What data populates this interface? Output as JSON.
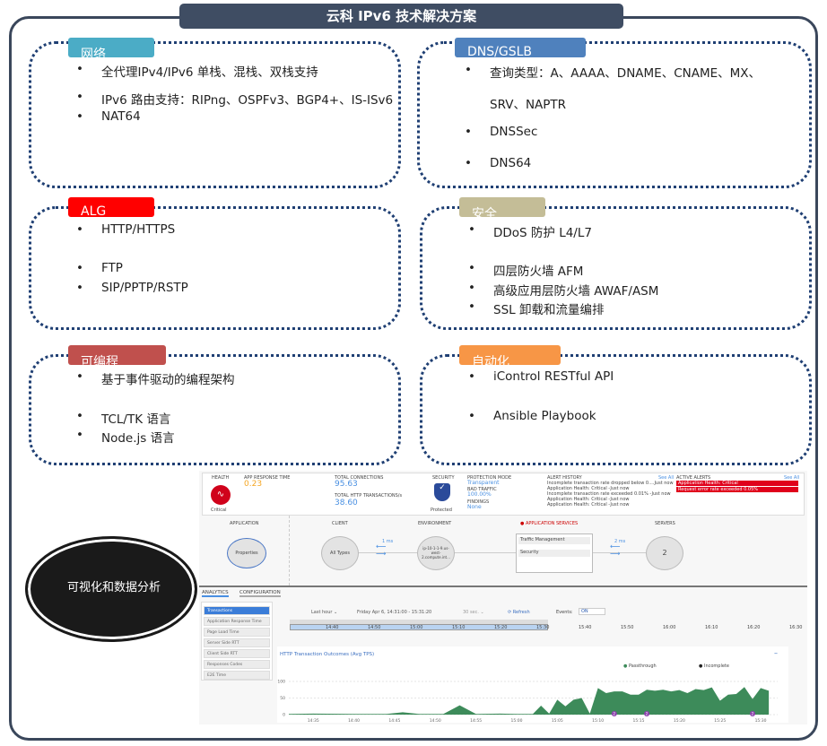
{
  "title": "云科 IPv6 技术解决方案",
  "sections": [
    {
      "label": "网络",
      "color": "#4bacc6",
      "items": [
        "全代理IPv4/IPv6 单栈、混栈、双栈支持",
        "IPv6 路由支持：RIPng、OSPFv3、BGP4+、IS-ISv6",
        "NAT64"
      ]
    },
    {
      "label": "DNS/GSLB",
      "color": "#4f81bd",
      "items": [
        "查询类型：A、AAAA、DNAME、CNAME、MX、",
        "SRV、NAPTR",
        "DNSSec",
        "DNS64"
      ]
    },
    {
      "label": "ALG",
      "color": "#ff0000",
      "items": [
        "HTTP/HTTPS",
        "FTP",
        "SIP/PPTP/RSTP"
      ]
    },
    {
      "label": "安全",
      "color": "#c4bd97",
      "items": [
        "DDoS 防护 L4/L7",
        "四层防火墙 AFM",
        "高级应用层防火墙 AWAF/ASM",
        "SSL 卸载和流量编排"
      ]
    },
    {
      "label": "可编程",
      "color": "#c0504d",
      "items": [
        "基于事件驱动的编程架构",
        "TCL/TK 语言",
        "Node.js 语言"
      ]
    },
    {
      "label": "自动化",
      "color": "#f79646",
      "items": [
        "iControl RESTful API",
        "Ansible Playbook"
      ]
    }
  ],
  "bullet": "•",
  "oval_text": "可视化和数据分析",
  "dash": {
    "health": "HEALTH",
    "health_status": "Critical",
    "art": "APP RESPONSE TIME",
    "art_value": "0.23",
    "tc": "TOTAL CONNECTIONS",
    "tc_value": "95.63",
    "tht": "TOTAL HTTP TRANSACTIONS/s",
    "tht_value": "38.60",
    "security": "SECURITY",
    "security_status": "Protected",
    "pm": "PROTECTION MODE",
    "pm_value": "Transparent",
    "bt": "BAD TRAFFIC",
    "bt_value": "100.00%",
    "findings": "FINDINGS",
    "findings_value": "None",
    "alert_history": "ALERT HISTORY",
    "see_all": "See All",
    "alerts": [
      "Incomplete transaction rate dropped below 0....Just now",
      "Application Health: Critical -Just now",
      "Incomplete transaction rate exceeded 0.01% -Just now",
      "Application Health: Critical -Just now",
      "Application Health: Critical -Just now"
    ],
    "active_alerts": "ACTIVE ALERTS",
    "active": [
      "Application Health: Critical",
      "Request error rate exceeded 0.05%"
    ],
    "map": {
      "application": "APPLICATION",
      "client": "CLIENT",
      "environment": "ENVIRONMENT",
      "app_services": "APPLICATION SERVICES",
      "servers": "SERVERS",
      "properties": "Properties",
      "all_types": "All Types",
      "env_node": "ip-10-1-1-9.us-west-2.compute.int...",
      "lat1": "1 ms",
      "lat2": "2 ms",
      "tm": "Traffic Management",
      "sec": "Security",
      "servers_count": "2"
    },
    "tabs": [
      "ANALYTICS",
      "CONFIGURATION"
    ],
    "side": [
      "Transactions",
      "Application Response Time",
      "Page Load Time",
      "Server Side RTT",
      "Client Side RTT",
      "Responses Codes",
      "E2E Time"
    ],
    "range": "Last hour ⌄",
    "period": "Friday Apr 6, 14:31:00 - 15:31:20",
    "interval": "30 sec. ⌄",
    "refresh": "⟳ Refresh",
    "events": "Events:",
    "events_state": "ON",
    "timeline": [
      "14:40",
      "14:50",
      "15:00",
      "15:10",
      "15:20",
      "15:30",
      "15:40",
      "15:50",
      "16:00",
      "16:10",
      "16:20",
      "16:30"
    ]
  },
  "chart_data": {
    "type": "area",
    "title": "HTTP Transaction Outcomes (Avg TPS)",
    "legend_position": "top-right",
    "ylim": [
      0,
      100
    ],
    "yticks": [
      "0",
      "50",
      "100"
    ],
    "xticks": [
      "14:35",
      "14:40",
      "14:45",
      "14:50",
      "14:55",
      "15:00",
      "15:05",
      "15:10",
      "15:15",
      "15:20",
      "15:25",
      "15:30"
    ],
    "series": [
      {
        "name": "Passthrough",
        "color": "#3d8b5a",
        "x": [
          "14:32",
          "14:35",
          "14:40",
          "14:44",
          "14:46",
          "14:48",
          "14:51",
          "14:53",
          "14:55",
          "14:58",
          "15:00",
          "15:02",
          "15:03",
          "15:04",
          "15:05",
          "15:06",
          "15:07",
          "15:08",
          "15:09",
          "15:10",
          "15:11",
          "15:12",
          "15:13",
          "15:14",
          "15:15",
          "15:16",
          "15:17",
          "15:18",
          "15:19",
          "15:20",
          "15:21",
          "15:22",
          "15:23",
          "15:24",
          "15:25",
          "15:26",
          "15:27",
          "15:28",
          "15:29",
          "15:30",
          "15:31"
        ],
        "y": [
          2,
          3,
          2,
          2,
          7,
          2,
          2,
          28,
          2,
          3,
          2,
          2,
          27,
          3,
          45,
          25,
          45,
          50,
          3,
          80,
          65,
          70,
          70,
          60,
          60,
          75,
          72,
          75,
          70,
          74,
          65,
          77,
          74,
          82,
          42,
          60,
          62,
          83,
          47,
          80,
          72
        ]
      },
      {
        "name": "Incomplete",
        "color": "#222222",
        "x": [],
        "y": []
      }
    ],
    "event_markers": [
      {
        "x": "15:12",
        "label": "2"
      },
      {
        "x": "15:16",
        "label": "2"
      },
      {
        "x": "15:29",
        "label": "2"
      }
    ]
  }
}
